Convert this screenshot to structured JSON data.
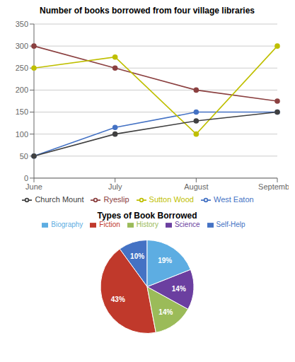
{
  "chart_data": [
    {
      "type": "line",
      "title": "Number of books borrowed from four village libraries",
      "categories": [
        "June",
        "July",
        "August",
        "September"
      ],
      "series": [
        {
          "name": "West Eaton",
          "color": "#4472c4",
          "values": [
            50,
            115,
            150,
            150
          ],
          "marker": "circle"
        },
        {
          "name": "Ryeslip",
          "color": "#8b4040",
          "values": [
            300,
            250,
            200,
            175
          ],
          "marker": "circle"
        },
        {
          "name": "Sutton Wood",
          "color": "#bfbf00",
          "values": [
            250,
            275,
            100,
            300
          ],
          "marker": "circle"
        },
        {
          "name": "Church Mount",
          "color": "#404040",
          "values": [
            50,
            100,
            130,
            150
          ],
          "marker": "circle"
        }
      ],
      "ylim": [
        0,
        350
      ],
      "yticks": [
        0,
        50,
        100,
        150,
        200,
        250,
        300,
        350
      ],
      "grid": true,
      "legend": "bottom"
    },
    {
      "type": "pie",
      "title": "Types of Book Borrowed",
      "categories": [
        "Self-Help",
        "Fiction",
        "History",
        "Science",
        "Biography"
      ],
      "values": [
        10,
        43,
        14,
        14,
        19
      ],
      "value_labels": [
        "10%",
        "43%",
        "14%",
        "14%",
        "19%"
      ],
      "colors": [
        "#4472c4",
        "#c0392b",
        "#9bbb59",
        "#6b3fa0",
        "#5dade2"
      ],
      "data_labels": true,
      "legend": "top"
    }
  ]
}
